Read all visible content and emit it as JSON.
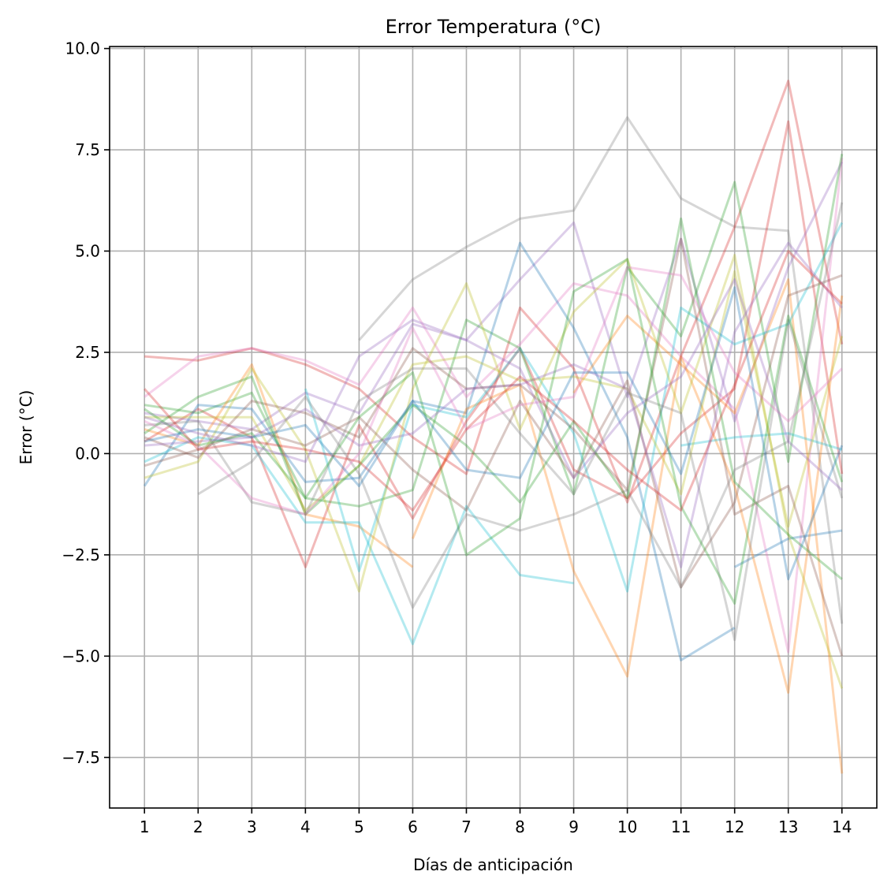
{
  "chart_data": {
    "type": "line",
    "title": "Error Temperatura (°C)",
    "xlabel": "Días de anticipación",
    "ylabel": "Error (°C)",
    "x": [
      1,
      2,
      3,
      4,
      5,
      6,
      7,
      8,
      9,
      10,
      11,
      12,
      13,
      14
    ],
    "xlim": [
      0.35,
      14.65
    ],
    "ylim": [
      -8.75,
      10.05
    ],
    "yticks": [
      -7.5,
      -5.0,
      -2.5,
      0.0,
      2.5,
      5.0,
      7.5,
      10.0
    ],
    "ytick_labels": [
      "−7.5",
      "−5.0",
      "−2.5",
      "0.0",
      "2.5",
      "5.0",
      "7.5",
      "10.0"
    ],
    "xtick_labels": [
      "1",
      "2",
      "3",
      "4",
      "5",
      "6",
      "7",
      "8",
      "9",
      "10",
      "11",
      "12",
      "13",
      "14"
    ],
    "grid": true,
    "legend": false,
    "palette": [
      "#1f77b4",
      "#ff7f0e",
      "#2ca02c",
      "#d62728",
      "#9467bd",
      "#8c564b",
      "#e377c2",
      "#7f7f7f",
      "#bcbd22",
      "#17becf"
    ],
    "series": [
      {
        "color": "#7f7f7f",
        "values": [
          null,
          null,
          null,
          null,
          2.8,
          4.3,
          5.1,
          5.8,
          6.0,
          8.3,
          6.3,
          5.6,
          5.5,
          -4.2
        ]
      },
      {
        "color": "#d62728",
        "values": [
          2.4,
          2.3,
          2.6,
          2.2,
          1.6,
          0.4,
          -0.5,
          3.6,
          2.1,
          -1.2,
          2.4,
          5.6,
          9.2,
          2.7
        ]
      },
      {
        "color": "#d62728",
        "values": [
          0.3,
          1.1,
          0.4,
          -2.8,
          0.7,
          -1.6,
          0.8,
          2.6,
          -0.4,
          -1.1,
          0.5,
          1.6,
          8.2,
          -0.5
        ]
      },
      {
        "color": "#e377c2",
        "values": [
          1.4,
          2.4,
          2.6,
          2.3,
          1.7,
          3.6,
          1.4,
          2.7,
          4.2,
          3.9,
          2.4,
          1.1,
          -4.9,
          7.3
        ]
      },
      {
        "color": "#9467bd",
        "values": [
          1.0,
          0.8,
          0.6,
          1.5,
          1.0,
          3.2,
          2.8,
          4.3,
          5.7,
          1.4,
          5.3,
          0.8,
          4.6,
          7.2
        ]
      },
      {
        "color": "#2ca02c",
        "values": [
          1.2,
          1.0,
          1.5,
          -1.1,
          -1.3,
          -0.9,
          3.3,
          2.6,
          -1.0,
          4.6,
          2.9,
          6.7,
          -0.2,
          7.4
        ]
      },
      {
        "color": "#1f77b4",
        "values": [
          -0.8,
          1.2,
          1.1,
          -0.7,
          -0.6,
          1.3,
          1.0,
          5.2,
          3.1,
          0.4,
          -5.1,
          -4.3,
          null,
          null
        ]
      },
      {
        "color": "#1f77b4",
        "values": [
          null,
          null,
          null,
          null,
          null,
          null,
          null,
          null,
          null,
          null,
          null,
          -2.8,
          -2.1,
          -1.9
        ]
      },
      {
        "color": "#ff7f0e",
        "values": [
          0.6,
          0.2,
          2.2,
          -1.5,
          -1.8,
          -2.8,
          null,
          null,
          null,
          null,
          null,
          null,
          null,
          null
        ]
      },
      {
        "color": "#ff7f0e",
        "values": [
          null,
          null,
          null,
          null,
          null,
          -2.1,
          1.1,
          1.7,
          -2.9,
          -5.5,
          2.4,
          -0.8,
          -5.9,
          3.9
        ]
      },
      {
        "color": "#ff7f0e",
        "values": [
          null,
          null,
          null,
          null,
          null,
          null,
          null,
          null,
          1.5,
          3.4,
          2.2,
          1.0,
          4.3,
          -7.9
        ]
      },
      {
        "color": "#17becf",
        "values": [
          -0.2,
          0.4,
          0.2,
          -1.7,
          -1.7,
          -4.7,
          -1.3,
          -3.0,
          -3.2,
          null,
          null,
          null,
          null,
          null
        ]
      },
      {
        "color": "#17becf",
        "values": [
          null,
          null,
          null,
          1.6,
          -2.9,
          1.2,
          0.9,
          2.6,
          0.5,
          -3.4,
          3.6,
          2.7,
          3.2,
          5.7
        ]
      },
      {
        "color": "#17becf",
        "values": [
          null,
          null,
          null,
          null,
          null,
          null,
          null,
          null,
          null,
          null,
          0.2,
          0.4,
          0.5,
          0.1
        ]
      },
      {
        "color": "#bcbd22",
        "values": [
          -0.6,
          -0.2,
          2.1,
          0.1,
          -3.4,
          1.6,
          4.2,
          0.6,
          3.5,
          4.8,
          1.0,
          4.9,
          -2.0,
          -5.8
        ]
      },
      {
        "color": "#bcbd22",
        "values": [
          0.9,
          0.9,
          0.9,
          -1.4,
          -0.3,
          2.2,
          2.4,
          1.8,
          1.9,
          1.6,
          -1.0,
          4.5,
          -1.8,
          2.9
        ]
      },
      {
        "color": "#8c564b",
        "values": [
          0.4,
          -0.1,
          1.3,
          1.0,
          0.4,
          2.6,
          1.6,
          1.7,
          0.6,
          -0.9,
          5.3,
          -1.5,
          -0.8,
          -5.0
        ]
      },
      {
        "color": "#8c564b",
        "values": [
          -0.3,
          0.1,
          0.6,
          0.2,
          0.9,
          -0.4,
          -1.4,
          1.3,
          -0.6,
          1.8,
          -3.3,
          -1.2,
          3.9,
          4.4
        ]
      },
      {
        "color": "#9467bd",
        "values": [
          0.2,
          0.3,
          0.4,
          1.1,
          0.2,
          0.5,
          1.6,
          1.7,
          2.2,
          1.6,
          -2.8,
          3.0,
          5.2,
          3.6
        ]
      },
      {
        "color": "#7f7f7f",
        "values": [
          null,
          -1.0,
          -0.2,
          1.4,
          -0.5,
          -3.8,
          -1.5,
          -1.9,
          -1.5,
          -0.9,
          -3.3,
          -0.4,
          0.3,
          6.2
        ]
      },
      {
        "color": "#7f7f7f",
        "values": [
          0.7,
          0.8,
          -1.2,
          -1.5,
          1.3,
          2.1,
          2.1,
          0.5,
          -1.0,
          1.5,
          1.0,
          -4.6,
          3.3,
          -1.1
        ]
      },
      {
        "color": "#2ca02c",
        "values": [
          1.1,
          0.2,
          0.5,
          -1.1,
          0.9,
          2.0,
          -2.5,
          -1.6,
          4.0,
          4.8,
          -1.3,
          -3.7,
          3.4,
          -0.7
        ]
      },
      {
        "color": "#2ca02c",
        "values": [
          0.5,
          1.4,
          1.9,
          -1.5,
          -0.3,
          1.2,
          0.2,
          -1.2,
          0.8,
          -1.1,
          5.8,
          -0.7,
          -2.0,
          -3.1
        ]
      },
      {
        "color": "#e377c2",
        "values": [
          0.8,
          0.2,
          -1.1,
          -1.5,
          0.0,
          3.1,
          0.6,
          1.2,
          1.4,
          4.6,
          4.4,
          2.0,
          0.8,
          2.1
        ]
      },
      {
        "color": "#d62728",
        "values": [
          1.6,
          0.1,
          0.3,
          0.1,
          -0.2,
          -1.4,
          0.6,
          1.9,
          0.8,
          -0.4,
          -1.4,
          1.7,
          5.0,
          3.7
        ]
      },
      {
        "color": "#1f77b4",
        "values": [
          0.3,
          0.6,
          0.4,
          0.7,
          -0.8,
          1.3,
          -0.4,
          -0.6,
          2.0,
          2.0,
          -0.5,
          4.1,
          -3.1,
          0.2
        ]
      },
      {
        "color": "#9467bd",
        "values": [
          0.9,
          0.5,
          0.2,
          -0.2,
          2.4,
          3.3,
          2.8,
          2.1,
          -0.6,
          1.0,
          1.9,
          4.3,
          0.3,
          -0.9
        ]
      }
    ]
  }
}
